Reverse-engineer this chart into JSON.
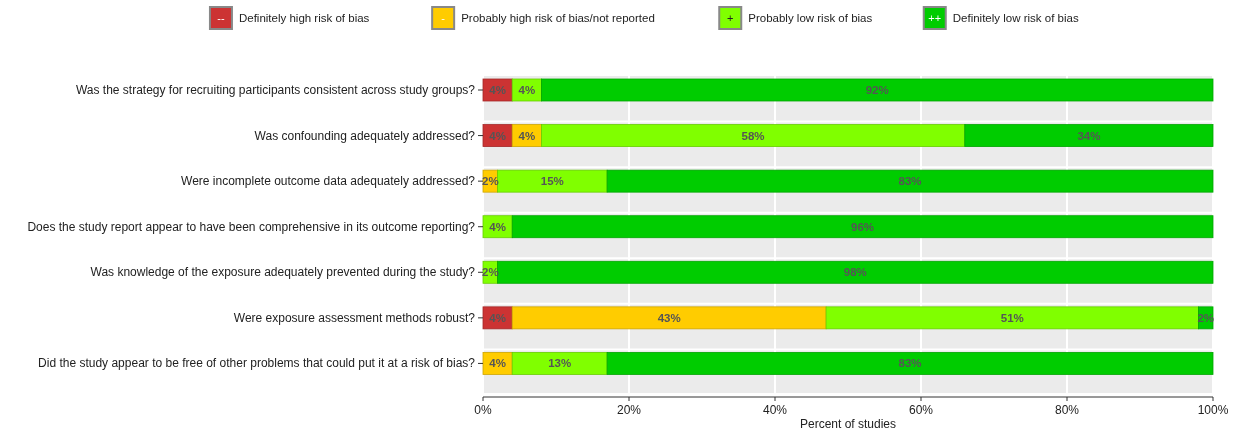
{
  "chart_data": {
    "type": "bar",
    "orientation": "horizontal",
    "stacked": true,
    "xlabel": "Percent of studies",
    "categories": [
      "Was the strategy for recruiting participants consistent across study groups?",
      "Was confounding adequately addressed?",
      "Were incomplete outcome data adequately addressed?",
      "Does the study report appear to have been comprehensive in its outcome reporting?",
      "Was knowledge of the exposure adequately prevented during the study?",
      "Were exposure assessment methods robust?",
      "Did the study appear to be free of other problems that could put it at a risk of bias?"
    ],
    "series": [
      {
        "name": "Definitely high risk of bias",
        "color": "#cc3333",
        "values": [
          4,
          4,
          null,
          null,
          null,
          4,
          null
        ],
        "value_labels": [
          "4%",
          "4%",
          null,
          null,
          null,
          "4%",
          null
        ]
      },
      {
        "name": "Probably high risk of bias/not reported",
        "color": "#ffcc00",
        "values": [
          null,
          4,
          2,
          null,
          null,
          43,
          4
        ],
        "value_labels": [
          null,
          "4%",
          "2%",
          null,
          null,
          "43%",
          "4%"
        ]
      },
      {
        "name": "Probably low risk of bias",
        "color": "#80ff00",
        "values": [
          4,
          58,
          15,
          4,
          2,
          51,
          13
        ],
        "value_labels": [
          "4%",
          "58%",
          "15%",
          "4%",
          "2%",
          "51%",
          "13%"
        ]
      },
      {
        "name": "Definitely low risk of bias",
        "color": "#00cc00",
        "values": [
          92,
          34,
          83,
          96,
          98,
          2,
          83
        ],
        "value_labels": [
          "92%",
          "34%",
          "83%",
          "96%",
          "98%",
          "2%",
          "83%"
        ]
      }
    ],
    "annotations": [
      "--",
      "-",
      "+",
      "++"
    ],
    "xlim": [
      0,
      100
    ],
    "xticks": [
      {
        "value": 0,
        "label": "0%"
      },
      {
        "value": 20,
        "label": "20%"
      },
      {
        "value": 40,
        "label": "40%"
      },
      {
        "value": 60,
        "label": "60%"
      },
      {
        "value": 80,
        "label": "80%"
      },
      {
        "value": 100,
        "label": "100%"
      }
    ],
    "grid": "x",
    "legend": "top"
  }
}
